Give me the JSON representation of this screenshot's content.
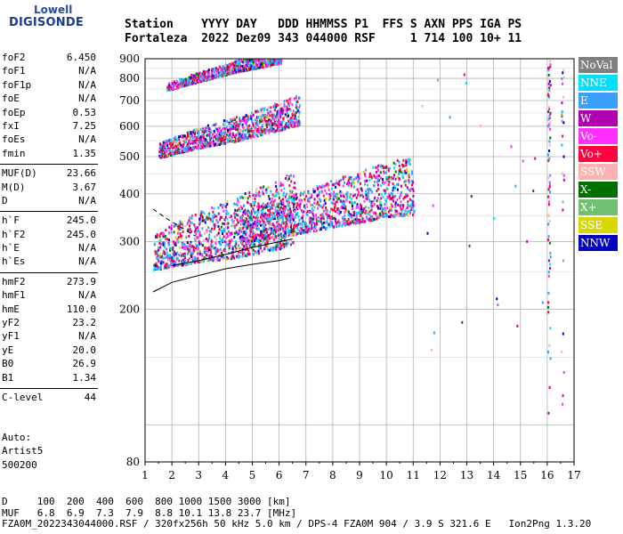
{
  "logo": {
    "line1": "Lowell",
    "line2": "DIGISONDE"
  },
  "header": {
    "line1": "Station    YYYY DAY   DDD HHMMSS P1  FFS S AXN PPS IGA PS",
    "line2": "Fortaleza  2022 Dez09 343 044000 RSF     1 714 100 10+ 11"
  },
  "params": [
    [
      {
        "name": "foF2",
        "value": "6.450"
      },
      {
        "name": "foF1",
        "value": "N/A"
      },
      {
        "name": "foF1p",
        "value": "N/A"
      },
      {
        "name": "foE",
        "value": "N/A"
      },
      {
        "name": "foEp",
        "value": "0.53"
      },
      {
        "name": "fxI",
        "value": "7.25"
      },
      {
        "name": "foEs",
        "value": "N/A"
      },
      {
        "name": "fmin",
        "value": "1.35"
      }
    ],
    [
      {
        "name": "MUF(D)",
        "value": "23.66"
      },
      {
        "name": "M(D)",
        "value": "3.67"
      },
      {
        "name": "D",
        "value": "N/A"
      }
    ],
    [
      {
        "name": "h`F",
        "value": "245.0"
      },
      {
        "name": "h`F2",
        "value": "245.0"
      },
      {
        "name": "h`E",
        "value": "N/A"
      },
      {
        "name": "h`Es",
        "value": "N/A"
      }
    ],
    [
      {
        "name": "hmF2",
        "value": "273.9"
      },
      {
        "name": "hmF1",
        "value": "N/A"
      },
      {
        "name": "hmE",
        "value": "110.0"
      },
      {
        "name": "yF2",
        "value": "23.2"
      },
      {
        "name": "yF1",
        "value": "N/A"
      },
      {
        "name": "yE",
        "value": "20.0"
      },
      {
        "name": "B0",
        "value": "26.9"
      },
      {
        "name": "B1",
        "value": "1.34"
      }
    ],
    [
      {
        "name": "C-level",
        "value": "44"
      }
    ]
  ],
  "auto": {
    "line1": "Auto:",
    "line2": "Artist5",
    "line3": "500200"
  },
  "legend": [
    {
      "label": "NoVal",
      "color": "#808080"
    },
    {
      "label": "NNE",
      "color": "#00e0ff"
    },
    {
      "label": "E",
      "color": "#3aa0ff"
    },
    {
      "label": "W",
      "color": "#b000b0"
    },
    {
      "label": "Vo-",
      "color": "#ff30ff"
    },
    {
      "label": "Vo+",
      "color": "#ff0040"
    },
    {
      "label": "SSW",
      "color": "#ffb0b0"
    },
    {
      "label": "X-",
      "color": "#007000"
    },
    {
      "label": "X+",
      "color": "#70c070"
    },
    {
      "label": "SSE",
      "color": "#d8d800"
    },
    {
      "label": "NNW",
      "color": "#0000c0"
    }
  ],
  "footer": {
    "line1": "D     100  200  400  600  800 1000 1500 3000 [km]",
    "line2": "MUF   6.8  6.9  7.3  7.9  8.8 10.1 13.8 23.7 [MHz]",
    "line3": "FZA0M_2022343044000.RSF / 320fx256h 50 kHz 5.0 km / DPS-4 FZA0M 904 / 3.9 S 321.6 E   Ion2Png 1.3.20"
  },
  "chart_data": {
    "type": "scatter",
    "xlim": [
      1,
      17
    ],
    "ylim": [
      80,
      900
    ],
    "yscale": "log",
    "xticks": [
      1,
      2,
      3,
      4,
      5,
      6,
      7,
      8,
      9,
      10,
      11,
      12,
      13,
      14,
      15,
      16,
      17
    ],
    "yticks": [
      80,
      100,
      200,
      300,
      400,
      500,
      600,
      700,
      800,
      900
    ],
    "ytick_labels": [
      "80",
      "",
      "200",
      "300",
      "400",
      "500",
      "600",
      "700",
      "800",
      "900"
    ],
    "grid": true,
    "legend_placement": "right",
    "traces": [
      {
        "name": "first-hop",
        "x_range": [
          1.3,
          6.5
        ],
        "base": [
          [
            1.3,
            255
          ],
          [
            2,
            260
          ],
          [
            3,
            268
          ],
          [
            4,
            272
          ],
          [
            5,
            280
          ],
          [
            6,
            290
          ],
          [
            6.5,
            300
          ]
        ],
        "spread": 160
      },
      {
        "name": "first-hop-upper",
        "x_range": [
          4.5,
          11
        ],
        "base": [
          [
            4.5,
            300
          ],
          [
            6,
            310
          ],
          [
            7,
            320
          ],
          [
            8,
            330
          ],
          [
            9,
            340
          ],
          [
            10,
            350
          ],
          [
            11,
            355
          ]
        ],
        "spread": 150
      },
      {
        "name": "second-hop",
        "x_range": [
          1.5,
          6.7
        ],
        "base": [
          [
            1.5,
            500
          ],
          [
            3,
            530
          ],
          [
            4.5,
            555
          ],
          [
            6,
            590
          ],
          [
            6.7,
            610
          ]
        ],
        "spread": 120
      },
      {
        "name": "third-hop",
        "x_range": [
          1.8,
          6.0
        ],
        "base": [
          [
            1.8,
            750
          ],
          [
            3,
            790
          ],
          [
            4.5,
            840
          ],
          [
            6,
            880
          ]
        ],
        "spread": 80
      }
    ],
    "curve_profile": [
      [
        1.3,
        222
      ],
      [
        2,
        235
      ],
      [
        3,
        245
      ],
      [
        4,
        255
      ],
      [
        5,
        262
      ],
      [
        6,
        268
      ],
      [
        6.4,
        272
      ]
    ],
    "curve_upper": [
      [
        2,
        260
      ],
      [
        3,
        268
      ],
      [
        4,
        278
      ],
      [
        5,
        290
      ],
      [
        6,
        300
      ],
      [
        6.5,
        305
      ]
    ],
    "dashed_extension": [
      [
        1.3,
        365
      ],
      [
        1.8,
        345
      ],
      [
        2.4,
        325
      ],
      [
        2.9,
        310
      ]
    ],
    "fmin": 1.35
  }
}
